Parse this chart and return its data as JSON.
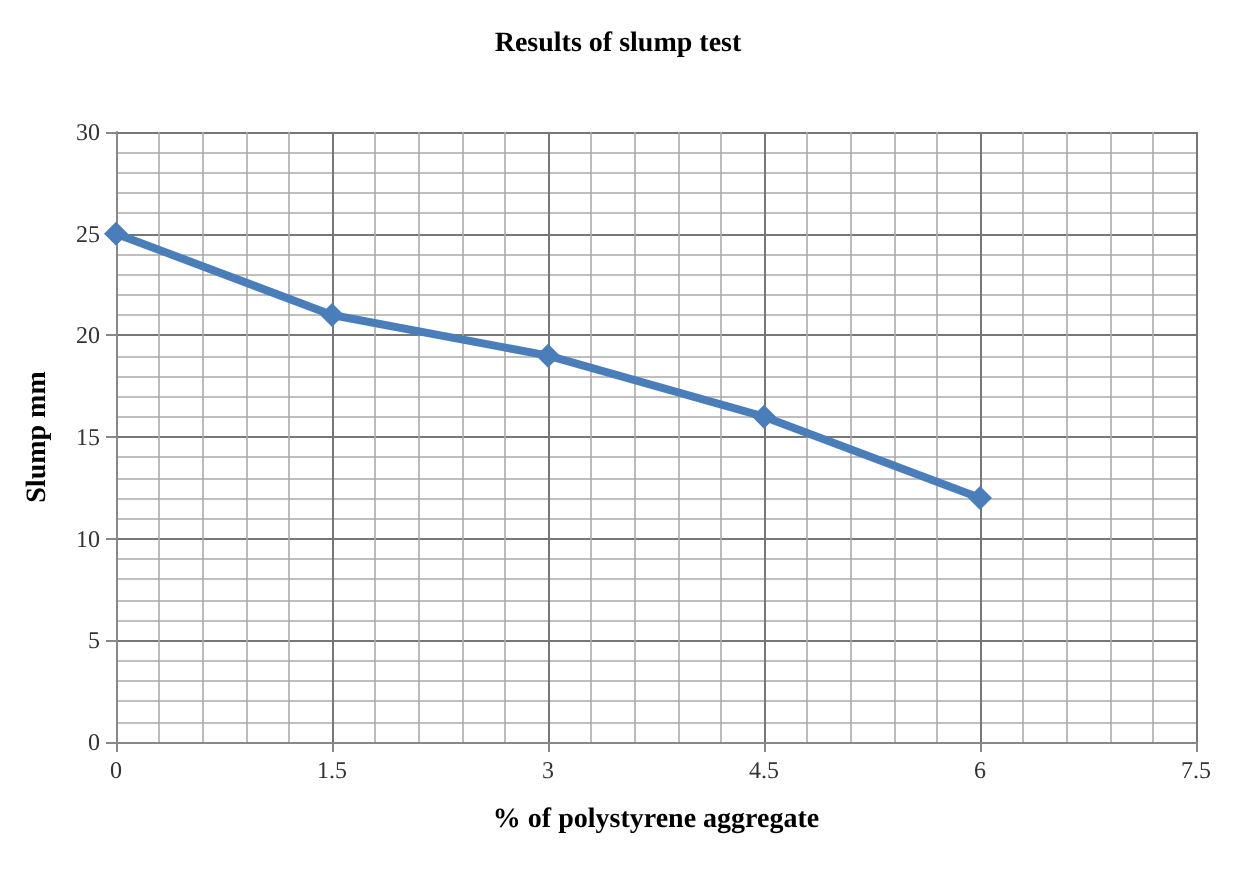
{
  "chart_data": {
    "type": "line",
    "title": "Results of slump test",
    "xlabel": "% of polystyrene aggregate",
    "ylabel": "Slump mm",
    "x": [
      0,
      1.5,
      3,
      4.5,
      6
    ],
    "series": [
      {
        "color": "#4a7ebb",
        "values": [
          25,
          21,
          19,
          16,
          12
        ]
      }
    ],
    "xlim": [
      0,
      7.5
    ],
    "xticks": [
      0,
      1.5,
      3,
      4.5,
      6,
      7.5
    ],
    "ylim": [
      0,
      30
    ],
    "yticks": [
      0,
      5,
      10,
      15,
      20,
      25,
      30
    ],
    "grid": true,
    "marker": "diamond",
    "line_style": "solid"
  }
}
